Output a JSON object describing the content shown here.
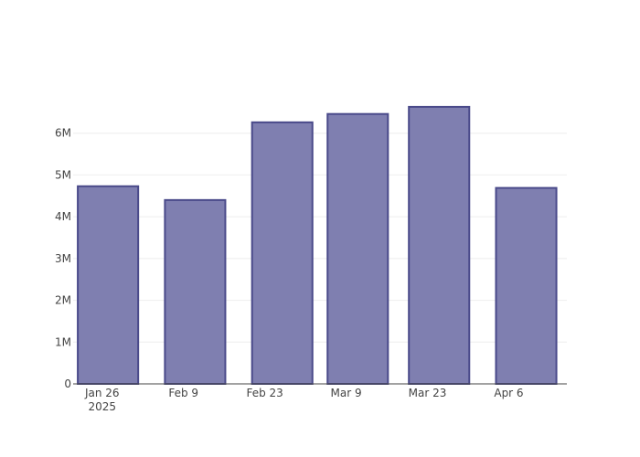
{
  "chart_data": {
    "type": "bar",
    "x": [
      "2025-01-27",
      "2025-02-11",
      "2025-02-26",
      "2025-03-11",
      "2025-03-25",
      "2025-04-09"
    ],
    "values": [
      4730000,
      4400000,
      6260000,
      6460000,
      6630000,
      4690000
    ],
    "color": "#7f7fb0",
    "edge_color": "#4a4a8a",
    "xlim": [
      "2025-01-21",
      "2025-04-16"
    ],
    "xticks": [
      {
        "value": "2025-01-26",
        "label": "Jan 26\n2025"
      },
      {
        "value": "2025-02-09",
        "label": "Feb 9"
      },
      {
        "value": "2025-02-23",
        "label": "Feb 23"
      },
      {
        "value": "2025-03-09",
        "label": "Mar 9"
      },
      {
        "value": "2025-03-23",
        "label": "Mar 23"
      },
      {
        "value": "2025-04-06",
        "label": "Apr 6"
      }
    ],
    "ylim": [
      0,
      7000000
    ],
    "yticks": [
      0,
      {
        "value": 1000000,
        "label": "1M"
      },
      {
        "value": 2000000,
        "label": "2M"
      },
      {
        "value": 3000000,
        "label": "3M"
      },
      {
        "value": 4000000,
        "label": "4M"
      },
      {
        "value": 5000000,
        "label": "5M"
      },
      {
        "value": 6000000,
        "label": "6M"
      }
    ],
    "grid": true
  }
}
